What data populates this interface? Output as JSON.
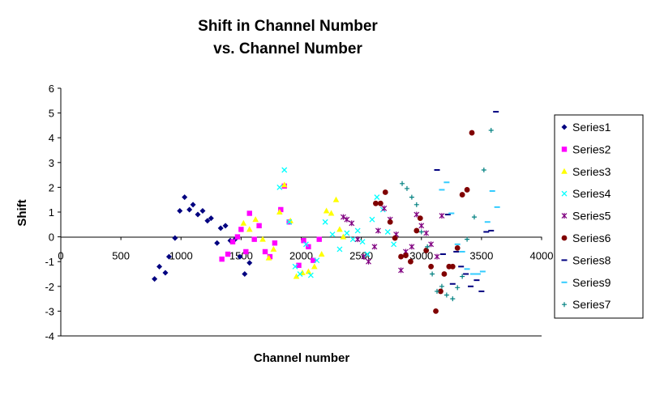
{
  "chart_data": {
    "type": "scatter",
    "title": "Shift in Channel Number",
    "subtitle": "vs. Channel Number",
    "xlabel": "Channel number",
    "ylabel": "Shift",
    "xlim": [
      0,
      4000
    ],
    "ylim": [
      -4,
      6
    ],
    "xticks": [
      0,
      500,
      1000,
      1500,
      2000,
      2500,
      3000,
      3500,
      4000
    ],
    "yticks": [
      -4,
      -3,
      -2,
      -1,
      0,
      1,
      2,
      3,
      4,
      5,
      6
    ],
    "grid": false,
    "legend_position": "right",
    "series": [
      {
        "name": "Series1",
        "color": "#000080",
        "marker": "diamond",
        "points": [
          [
            780,
            -1.7
          ],
          [
            820,
            -1.2
          ],
          [
            870,
            -1.45
          ],
          [
            900,
            -0.8
          ],
          [
            950,
            -0.05
          ],
          [
            990,
            1.05
          ],
          [
            1030,
            1.6
          ],
          [
            1070,
            1.1
          ],
          [
            1100,
            1.3
          ],
          [
            1140,
            0.9
          ],
          [
            1180,
            1.05
          ],
          [
            1220,
            0.65
          ],
          [
            1250,
            0.75
          ],
          [
            1300,
            -0.25
          ],
          [
            1330,
            0.35
          ],
          [
            1370,
            0.45
          ],
          [
            1410,
            -0.15
          ],
          [
            1450,
            -0.1
          ],
          [
            1490,
            -0.8
          ],
          [
            1530,
            -1.5
          ],
          [
            1570,
            -1.05
          ]
        ]
      },
      {
        "name": "Series2",
        "color": "#ff00ff",
        "marker": "square",
        "points": [
          [
            1340,
            -0.9
          ],
          [
            1390,
            -0.7
          ],
          [
            1430,
            -0.2
          ],
          [
            1470,
            0.0
          ],
          [
            1500,
            0.3
          ],
          [
            1540,
            -0.6
          ],
          [
            1570,
            0.95
          ],
          [
            1610,
            -0.1
          ],
          [
            1650,
            0.45
          ],
          [
            1700,
            -0.6
          ],
          [
            1740,
            -0.8
          ],
          [
            1780,
            -0.25
          ],
          [
            1830,
            1.1
          ],
          [
            1860,
            2.05
          ],
          [
            1900,
            0.6
          ],
          [
            1980,
            -1.15
          ],
          [
            2020,
            -0.15
          ],
          [
            2060,
            -0.4
          ],
          [
            2100,
            -0.95
          ],
          [
            2150,
            -0.1
          ]
        ]
      },
      {
        "name": "Series3",
        "color": "#ffff00",
        "marker": "triangle",
        "points": [
          [
            1520,
            0.55
          ],
          [
            1570,
            0.3
          ],
          [
            1620,
            0.7
          ],
          [
            1680,
            -0.1
          ],
          [
            1730,
            -0.85
          ],
          [
            1770,
            -0.5
          ],
          [
            1820,
            1.0
          ],
          [
            1860,
            2.1
          ],
          [
            1910,
            0.65
          ],
          [
            1960,
            -1.6
          ],
          [
            2010,
            -1.45
          ],
          [
            2060,
            -1.4
          ],
          [
            2110,
            -1.2
          ],
          [
            2170,
            -0.7
          ],
          [
            2210,
            1.05
          ],
          [
            2250,
            0.95
          ],
          [
            2290,
            1.5
          ],
          [
            2320,
            0.3
          ],
          [
            2350,
            0.0
          ]
        ]
      },
      {
        "name": "Series4",
        "color": "#00ffff",
        "marker": "x",
        "points": [
          [
            1820,
            2.0
          ],
          [
            1860,
            2.7
          ],
          [
            1900,
            0.6
          ],
          [
            1950,
            -1.2
          ],
          [
            1990,
            -1.5
          ],
          [
            2040,
            -0.3
          ],
          [
            2080,
            -1.55
          ],
          [
            2130,
            -0.95
          ],
          [
            2200,
            0.6
          ],
          [
            2260,
            0.1
          ],
          [
            2320,
            -0.5
          ],
          [
            2380,
            0.15
          ],
          [
            2430,
            -0.1
          ],
          [
            2470,
            0.25
          ],
          [
            2510,
            -0.2
          ],
          [
            2550,
            -0.7
          ],
          [
            2590,
            0.7
          ],
          [
            2630,
            1.6
          ],
          [
            2680,
            1.1
          ],
          [
            2720,
            0.2
          ],
          [
            2770,
            -0.3
          ]
        ]
      },
      {
        "name": "Series5",
        "color": "#800080",
        "marker": "star",
        "points": [
          [
            2350,
            0.8
          ],
          [
            2380,
            0.7
          ],
          [
            2420,
            0.55
          ],
          [
            2470,
            -0.1
          ],
          [
            2520,
            -0.8
          ],
          [
            2560,
            -1.0
          ],
          [
            2610,
            -0.4
          ],
          [
            2640,
            0.25
          ],
          [
            2690,
            1.15
          ],
          [
            2740,
            0.7
          ],
          [
            2790,
            0.1
          ],
          [
            2830,
            -1.35
          ],
          [
            2870,
            -0.6
          ],
          [
            2920,
            -0.4
          ],
          [
            2960,
            0.9
          ],
          [
            3000,
            0.45
          ],
          [
            3040,
            0.15
          ],
          [
            3080,
            -0.3
          ],
          [
            3130,
            -0.8
          ],
          [
            3170,
            0.85
          ]
        ]
      },
      {
        "name": "Series6",
        "color": "#800000",
        "marker": "circle",
        "points": [
          [
            2620,
            1.35
          ],
          [
            2660,
            1.35
          ],
          [
            2700,
            1.8
          ],
          [
            2740,
            0.6
          ],
          [
            2780,
            -0.05
          ],
          [
            2830,
            -0.8
          ],
          [
            2870,
            -0.75
          ],
          [
            2910,
            -1.0
          ],
          [
            2960,
            0.25
          ],
          [
            2990,
            0.75
          ],
          [
            3040,
            -0.55
          ],
          [
            3080,
            -1.2
          ],
          [
            3120,
            -3.0
          ],
          [
            3160,
            -2.2
          ],
          [
            3190,
            -1.5
          ],
          [
            3230,
            -1.2
          ],
          [
            3260,
            -1.2
          ],
          [
            3300,
            -0.45
          ],
          [
            3340,
            1.7
          ],
          [
            3380,
            1.9
          ],
          [
            3420,
            4.2
          ]
        ]
      },
      {
        "name": "Series8",
        "color": "#000080",
        "marker": "dash",
        "points": [
          [
            3130,
            2.7
          ],
          [
            3180,
            -0.7
          ],
          [
            3220,
            0.9
          ],
          [
            3260,
            -1.9
          ],
          [
            3290,
            -0.6
          ],
          [
            3330,
            -1.2
          ],
          [
            3370,
            -1.5
          ],
          [
            3410,
            -2.0
          ],
          [
            3460,
            -1.75
          ],
          [
            3500,
            -2.2
          ],
          [
            3540,
            0.2
          ],
          [
            3580,
            0.25
          ],
          [
            3620,
            5.05
          ]
        ]
      },
      {
        "name": "Series9",
        "color": "#33ccff",
        "marker": "dash",
        "points": [
          [
            3170,
            1.9
          ],
          [
            3210,
            2.2
          ],
          [
            3250,
            0.95
          ],
          [
            3300,
            -0.3
          ],
          [
            3340,
            -0.6
          ],
          [
            3380,
            -1.3
          ],
          [
            3430,
            -1.5
          ],
          [
            3470,
            -1.5
          ],
          [
            3510,
            -1.4
          ],
          [
            3550,
            0.6
          ],
          [
            3590,
            1.85
          ],
          [
            3630,
            1.2
          ]
        ]
      },
      {
        "name": "Series7",
        "color": "#008080",
        "marker": "plus",
        "points": [
          [
            2840,
            2.15
          ],
          [
            2880,
            1.95
          ],
          [
            2920,
            1.6
          ],
          [
            2960,
            1.3
          ],
          [
            3000,
            0.2
          ],
          [
            3050,
            -0.4
          ],
          [
            3090,
            -1.5
          ],
          [
            3130,
            -2.2
          ],
          [
            3170,
            -2.0
          ],
          [
            3210,
            -2.35
          ],
          [
            3260,
            -2.5
          ],
          [
            3300,
            -2.05
          ],
          [
            3340,
            -1.6
          ],
          [
            3380,
            -0.1
          ],
          [
            3440,
            0.8
          ],
          [
            3520,
            2.7
          ],
          [
            3580,
            4.3
          ]
        ]
      }
    ]
  }
}
